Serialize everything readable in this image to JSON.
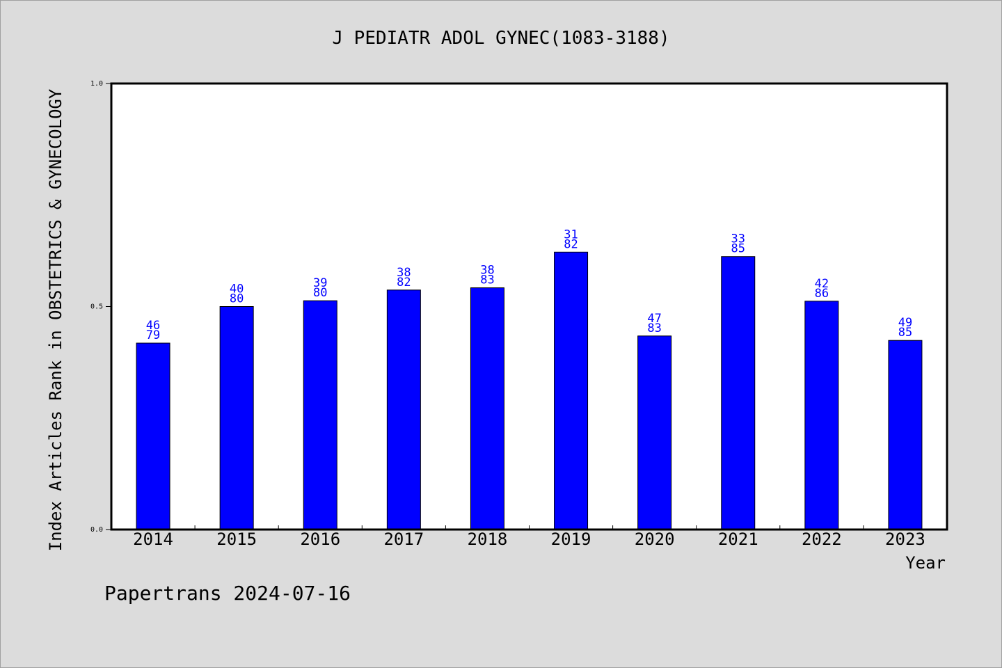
{
  "chart_data": {
    "type": "bar",
    "title": "J PEDIATR ADOL GYNEC(1083-3188)",
    "xlabel": "Year",
    "ylabel": "Index Articles Rank in OBSTETRICS & GYNECOLOGY",
    "ylim": [
      0.0,
      1.0
    ],
    "yticks": [
      "0.0",
      "0.5",
      "1.0"
    ],
    "categories": [
      "2014",
      "2015",
      "2016",
      "2017",
      "2018",
      "2019",
      "2020",
      "2021",
      "2022",
      "2023"
    ],
    "values": [
      0.418,
      0.5,
      0.513,
      0.537,
      0.542,
      0.622,
      0.434,
      0.612,
      0.512,
      0.424
    ],
    "labels_top": [
      "46",
      "40",
      "39",
      "38",
      "38",
      "31",
      "47",
      "33",
      "42",
      "49"
    ],
    "labels_bottom": [
      "79",
      "80",
      "80",
      "82",
      "83",
      "82",
      "83",
      "85",
      "86",
      "85"
    ],
    "bar_color": "#0000ff",
    "grid": false,
    "legend": "none"
  },
  "footer": {
    "text": "Papertrans 2024-07-16"
  }
}
